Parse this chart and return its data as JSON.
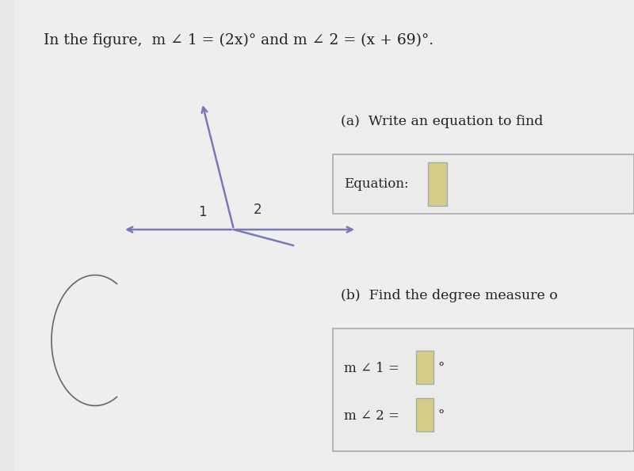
{
  "bg_color": "#e8e8e8",
  "paper_color": "#efefef",
  "title_text": "In the figure,  m ∠ 1 = (2x)° and m ∠ 2 = (x + 69)°.",
  "title_fontsize": 13.5,
  "line_color": "#7878bb",
  "label1_text": "1",
  "label2_text": "2",
  "part_a_text": "(a)  Write an equation to find",
  "equation_label": "Equation:",
  "part_b_text": "(b)  Find the degree measure o",
  "m1_label": "m ∠ 1 = ",
  "m2_label": "m ∠ 2 = ",
  "deg_symbol": "°",
  "input_box_color": "#d4cc88",
  "input_box_edge": "#aaaaaa",
  "box_bg": "#ebebeb",
  "box_edge": "#aaaaaa",
  "dark_line_color": "#555555"
}
